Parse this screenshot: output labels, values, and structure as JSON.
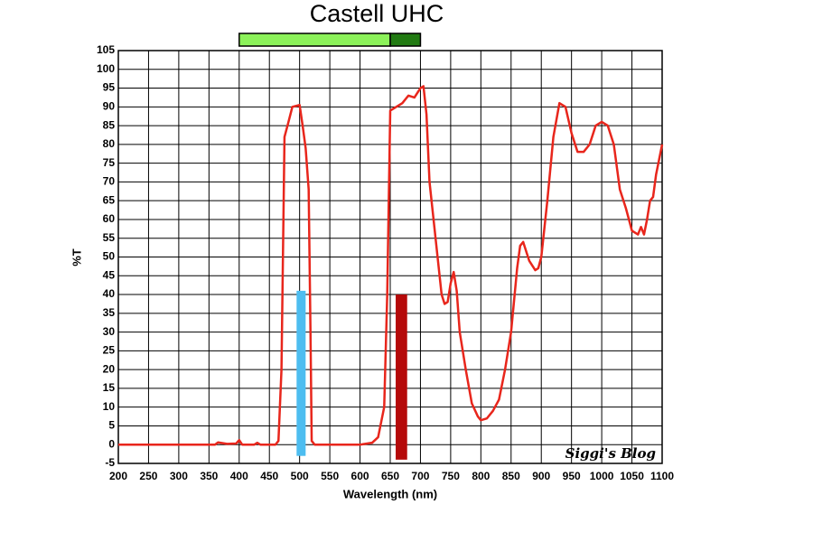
{
  "chart_data": {
    "type": "line",
    "title": "Castell UHC",
    "x_label": "Wavelength (nm)",
    "y_label": "%T",
    "annotation": "Siggi's Blog",
    "x": [
      200,
      360,
      365,
      380,
      395,
      400,
      405,
      425,
      430,
      435,
      460,
      465,
      470,
      475,
      480,
      488,
      500,
      505,
      510,
      515,
      518,
      520,
      525,
      600,
      620,
      630,
      640,
      645,
      650,
      660,
      670,
      680,
      690,
      700,
      705,
      710,
      715,
      725,
      735,
      740,
      745,
      750,
      755,
      760,
      765,
      775,
      785,
      795,
      800,
      810,
      820,
      830,
      840,
      850,
      860,
      865,
      870,
      880,
      890,
      895,
      900,
      910,
      920,
      930,
      940,
      950,
      960,
      970,
      980,
      990,
      1000,
      1010,
      1020,
      1030,
      1040,
      1050,
      1060,
      1065,
      1070,
      1075,
      1080,
      1085,
      1090,
      1100
    ],
    "series": [
      {
        "color": "#e8261c",
        "values": [
          0,
          0,
          0.6,
          0.2,
          0.3,
          1.2,
          0,
          0,
          0.5,
          0,
          0,
          1,
          20,
          82,
          85,
          90,
          90.5,
          85,
          79,
          68,
          30,
          1,
          0,
          0,
          0.5,
          2,
          10,
          40,
          89,
          90,
          91,
          93,
          92.5,
          95,
          95.5,
          88,
          70,
          55,
          40,
          37.5,
          38,
          43,
          46,
          41,
          30,
          20,
          11,
          7.5,
          6.5,
          7,
          9,
          12,
          20,
          30,
          47,
          53,
          54,
          49,
          46.5,
          47,
          50,
          65,
          82,
          91,
          90,
          83,
          78,
          78,
          80,
          85,
          86,
          85,
          80,
          68,
          63,
          57,
          56,
          58,
          56,
          60,
          65,
          66,
          72,
          80
        ]
      }
    ],
    "highlights": [
      {
        "x": [
          495,
          510
        ],
        "y": [
          -3,
          41
        ],
        "color": "#4dbdf0"
      },
      {
        "x": [
          659,
          678
        ],
        "y": [
          -4,
          40
        ],
        "color": "#b50a0a"
      }
    ],
    "range_bars": [
      {
        "x": [
          400,
          650
        ],
        "color": "#8cf25a"
      },
      {
        "x": [
          650,
          700
        ],
        "color": "#217a12"
      }
    ],
    "xlim": [
      200,
      1100
    ],
    "xticks": [
      200,
      250,
      300,
      350,
      400,
      450,
      500,
      550,
      600,
      650,
      700,
      750,
      800,
      850,
      900,
      950,
      1000,
      1050,
      1100
    ],
    "ylim": [
      -5,
      105
    ],
    "yticks": [
      -5,
      0,
      5,
      10,
      15,
      20,
      25,
      30,
      35,
      40,
      45,
      50,
      55,
      60,
      65,
      70,
      75,
      80,
      85,
      90,
      95,
      100,
      105
    ],
    "grid": true
  }
}
